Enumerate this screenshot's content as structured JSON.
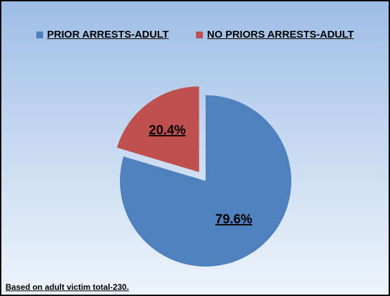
{
  "chart_data": {
    "type": "pie",
    "title": "",
    "categories": [
      "PRIOR ARRESTS-ADULT",
      "NO PRIORS ARRESTS-ADULT"
    ],
    "values": [
      79.6,
      20.4
    ],
    "value_labels": [
      "79.6%",
      "20.4%"
    ],
    "colors": [
      "#4f81bd",
      "#c0504d"
    ],
    "legend_position": "top",
    "exploded": [
      false,
      true
    ]
  },
  "legend": {
    "items": [
      {
        "label": "PRIOR ARRESTS-ADULT",
        "color": "#4f81bd"
      },
      {
        "label": "NO PRIORS ARRESTS-ADULT",
        "color": "#c0504d"
      }
    ]
  },
  "footnote": "Based on adult victim total-230."
}
